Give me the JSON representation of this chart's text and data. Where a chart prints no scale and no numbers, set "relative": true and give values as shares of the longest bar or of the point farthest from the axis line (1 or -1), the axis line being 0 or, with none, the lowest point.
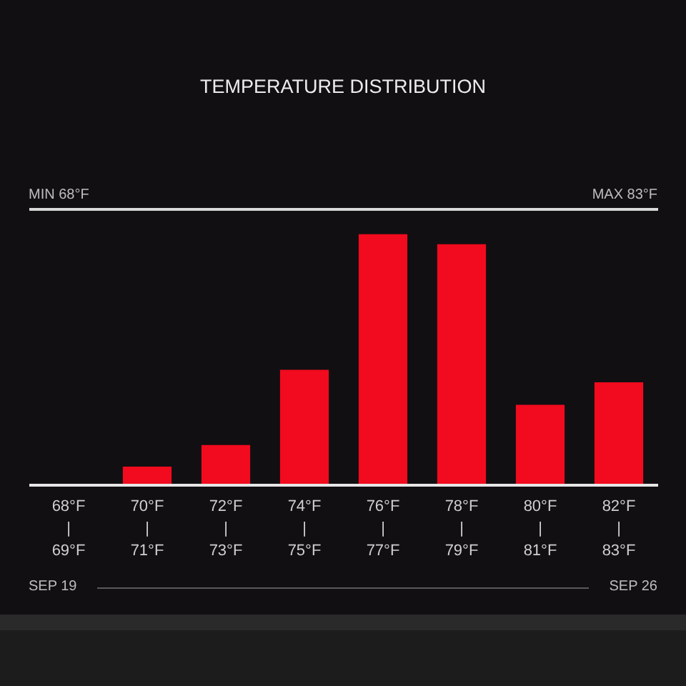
{
  "chart_data": {
    "type": "bar",
    "title": "TEMPERATURE DISTRIBUTION",
    "categories": [
      "68°F\n|\n69°F",
      "70°F\n|\n71°F",
      "72°F\n|\n73°F",
      "74°F\n|\n75°F",
      "76°F\n|\n77°F",
      "78°F\n|\n79°F",
      "80°F\n|\n81°F",
      "82°F\n|\n83°F"
    ],
    "values": [
      0,
      0.074,
      0.16,
      0.46,
      1,
      0.96,
      0.32,
      0.41
    ],
    "relative": true,
    "color": "#f20a1e",
    "annotations": [
      "MIN 68°F",
      "MAX 83°F",
      "SEP 19",
      "SEP 26"
    ]
  }
}
